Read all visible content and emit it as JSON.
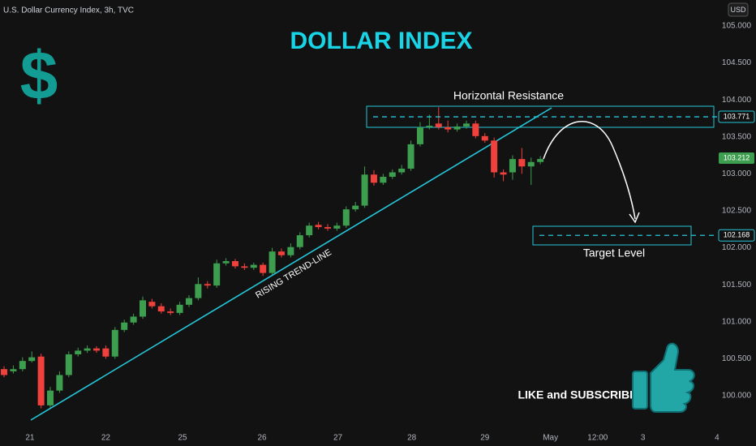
{
  "chart_data": {
    "type": "candlestick",
    "header": "U.S. Dollar Currency Index, 3h, TVC",
    "currency": "USD",
    "title": "DOLLAR INDEX",
    "symbol": "$",
    "annotations": {
      "resistance": "Horizontal Resistance",
      "target": "Target Level",
      "trendline": "RISING TREND-LINE",
      "cta": "LIKE and SUBSCRIBE"
    },
    "up_color": "#3d9e4f",
    "down_color": "#f0413d",
    "x": [
      0,
      1,
      2,
      3,
      4,
      5,
      6,
      7,
      8,
      9,
      10,
      11,
      12,
      13,
      14,
      15,
      16,
      17,
      18,
      19,
      20,
      21,
      22,
      23,
      24,
      25,
      26,
      27,
      28,
      29,
      30,
      31,
      32,
      33,
      34,
      35,
      36,
      37,
      38,
      39,
      40,
      41,
      42,
      43,
      44,
      45,
      46,
      47,
      48,
      49,
      50,
      51,
      52,
      53,
      54,
      55,
      56,
      57,
      58
    ],
    "open": [
      100.36,
      100.33,
      100.36,
      100.47,
      100.53,
      99.87,
      100.07,
      100.28,
      100.56,
      100.61,
      100.64,
      100.64,
      100.53,
      100.89,
      100.99,
      101.07,
      101.27,
      101.21,
      101.14,
      101.12,
      101.23,
      101.32,
      101.51,
      101.49,
      101.79,
      101.82,
      101.75,
      101.73,
      101.77,
      101.66,
      101.95,
      101.9,
      102.01,
      102.17,
      102.31,
      102.28,
      102.26,
      102.3,
      102.52,
      102.57,
      102.99,
      102.88,
      102.96,
      103.02,
      103.07,
      103.4,
      103.63,
      103.68,
      103.63,
      103.6,
      103.64,
      103.68,
      103.51,
      103.45,
      103.02,
      103.02,
      103.2,
      103.1,
      103.16
    ],
    "close": [
      100.28,
      100.36,
      100.47,
      100.52,
      99.87,
      100.07,
      100.28,
      100.56,
      100.61,
      100.64,
      100.61,
      100.53,
      100.89,
      100.99,
      101.07,
      101.29,
      101.21,
      101.14,
      101.12,
      101.23,
      101.32,
      101.51,
      101.49,
      101.79,
      101.82,
      101.75,
      101.73,
      101.77,
      101.66,
      101.95,
      101.9,
      102.01,
      102.17,
      102.3,
      102.28,
      102.26,
      102.3,
      102.52,
      102.57,
      102.99,
      102.88,
      102.96,
      103.02,
      103.07,
      103.4,
      103.63,
      103.65,
      103.63,
      103.6,
      103.64,
      103.68,
      103.51,
      103.45,
      103.02,
      102.99,
      103.2,
      103.1,
      103.16,
      103.2
    ],
    "high": [
      100.4,
      100.41,
      100.52,
      100.6,
      100.57,
      100.12,
      100.33,
      100.6,
      100.65,
      100.68,
      100.67,
      100.68,
      100.93,
      101.03,
      101.11,
      101.34,
      101.31,
      101.25,
      101.18,
      101.27,
      101.36,
      101.6,
      101.55,
      101.84,
      101.86,
      101.85,
      101.79,
      101.8,
      101.8,
      102.0,
      101.99,
      102.06,
      102.21,
      102.34,
      102.35,
      102.32,
      102.34,
      102.56,
      102.62,
      103.1,
      103.05,
      103.0,
      103.06,
      103.12,
      103.45,
      103.7,
      103.8,
      103.9,
      103.72,
      103.68,
      103.72,
      103.72,
      103.55,
      103.49,
      103.06,
      103.25,
      103.35,
      103.22,
      103.24
    ],
    "low": [
      100.25,
      100.3,
      100.33,
      100.45,
      99.83,
      99.84,
      100.04,
      100.25,
      100.53,
      100.58,
      100.58,
      100.5,
      100.5,
      100.86,
      100.96,
      101.04,
      101.18,
      101.11,
      101.09,
      101.09,
      101.2,
      101.29,
      101.45,
      101.46,
      101.76,
      101.72,
      101.7,
      101.7,
      101.62,
      101.63,
      101.87,
      101.87,
      101.98,
      102.14,
      102.25,
      102.23,
      102.23,
      102.27,
      102.49,
      102.54,
      102.84,
      102.85,
      102.93,
      102.99,
      103.04,
      103.37,
      103.6,
      103.6,
      103.56,
      103.57,
      103.61,
      103.48,
      103.42,
      102.95,
      102.9,
      102.92,
      103.0,
      102.85,
      103.13
    ],
    "xlim": [
      -0.44,
      77.2
    ],
    "xticks": [
      {
        "value": 2.8,
        "label": "21"
      },
      {
        "value": 11.0,
        "label": "22"
      },
      {
        "value": 19.3,
        "label": "25"
      },
      {
        "value": 27.9,
        "label": "26"
      },
      {
        "value": 36.1,
        "label": "27"
      },
      {
        "value": 44.1,
        "label": "28"
      },
      {
        "value": 52.0,
        "label": "29"
      },
      {
        "value": 59.1,
        "label": "May"
      },
      {
        "value": 64.2,
        "label": "12:00"
      },
      {
        "value": 69.1,
        "label": "3"
      },
      {
        "value": 77.1,
        "label": "4"
      }
    ],
    "ylim": [
      99.54,
      105.35
    ],
    "yticks": [
      {
        "value": 100,
        "label": "100.000"
      },
      {
        "value": 100.5,
        "label": "100.500"
      },
      {
        "value": 101,
        "label": "101.000"
      },
      {
        "value": 101.5,
        "label": "101.500"
      },
      {
        "value": 102,
        "label": "102.000"
      },
      {
        "value": 102.5,
        "label": "102.500"
      },
      {
        "value": 103,
        "label": "103.000"
      },
      {
        "value": 103.5,
        "label": "103.500"
      },
      {
        "value": 104,
        "label": "104.000"
      },
      {
        "value": 104.5,
        "label": "104.500"
      },
      {
        "value": 105,
        "label": "105.000"
      }
    ],
    "price_lines": [
      {
        "value": 103.771,
        "label": "103.771"
      },
      {
        "value": 102.168,
        "label": "102.168"
      }
    ],
    "price_line_color": "#26c6da",
    "last_price": {
      "value": 103.212,
      "label": "103.212"
    }
  }
}
